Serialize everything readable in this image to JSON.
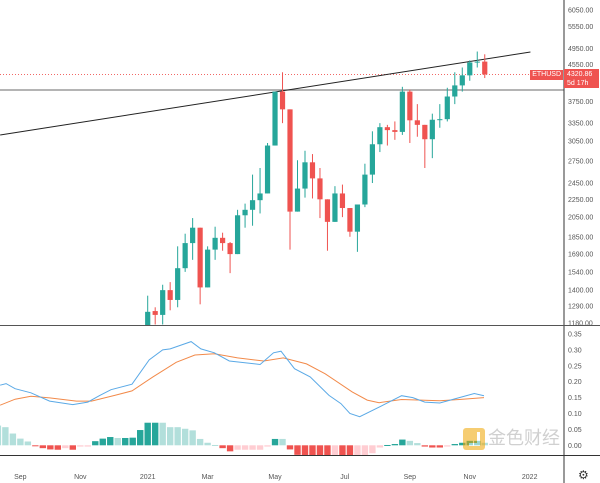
{
  "symbol": "ETHUSD",
  "last_price": "4320.86",
  "countdown": "5d 17h",
  "colors": {
    "up": "#26a69a",
    "down": "#ef5350",
    "hist_up_strong": "#26a69a",
    "hist_up_weak": "#b2dfdb",
    "hist_down_strong": "#ef5350",
    "hist_down_weak": "#ffcdd2",
    "line_fast": "#5aa9e6",
    "line_slow": "#f28a4a"
  },
  "price_axis": {
    "scale": "log",
    "ticks": [
      "6050.00",
      "5550.00",
      "4950.00",
      "4550.00",
      "3750.00",
      "3350.00",
      "3050.00",
      "2750.00",
      "2450.00",
      "2250.00",
      "2050.00",
      "1850.00",
      "1690.00",
      "1540.00",
      "1400.00",
      "1290.00",
      "1180.00"
    ]
  },
  "indicator_axis": {
    "ticks": [
      "0.35",
      "0.30",
      "0.25",
      "0.20",
      "0.15",
      "0.10",
      "0.05",
      "0.00"
    ]
  },
  "time_axis": [
    {
      "label": "Sep",
      "week": -17
    },
    {
      "label": "Nov",
      "week": -9
    },
    {
      "label": "2021",
      "week": 0
    },
    {
      "label": "Mar",
      "week": 8
    },
    {
      "label": "May",
      "week": 17
    },
    {
      "label": "Jul",
      "week": 26.3
    },
    {
      "label": "Sep",
      "week": 35
    },
    {
      "label": "Nov",
      "week": 43
    },
    {
      "label": "2022",
      "week": 51
    }
  ],
  "drawings": {
    "trendline": [
      {
        "week": -19.7,
        "price": 3149
      },
      {
        "week": 51.1,
        "price": 4858
      }
    ],
    "horizontal_level": 3983
  },
  "chart_data": {
    "type": "candlestick",
    "candles": [
      [
        1150,
        1360,
        1150,
        1250
      ],
      [
        1255,
        1280,
        1170,
        1230
      ],
      [
        1230,
        1440,
        1170,
        1400
      ],
      [
        1400,
        1460,
        1260,
        1330
      ],
      [
        1330,
        1760,
        1280,
        1570
      ],
      [
        1570,
        1880,
        1540,
        1790
      ],
      [
        1790,
        2040,
        1640,
        1940
      ],
      [
        1940,
        1940,
        1300,
        1420
      ],
      [
        1420,
        1760,
        1420,
        1730
      ],
      [
        1730,
        1950,
        1640,
        1840
      ],
      [
        1840,
        1890,
        1720,
        1790
      ],
      [
        1790,
        1800,
        1530,
        1690
      ],
      [
        1690,
        2130,
        1690,
        2070
      ],
      [
        2070,
        2200,
        1940,
        2130
      ],
      [
        2130,
        2560,
        1960,
        2240
      ],
      [
        2240,
        2650,
        2090,
        2320
      ],
      [
        2320,
        3020,
        2320,
        2980
      ],
      [
        2980,
        3950,
        2980,
        3950
      ],
      [
        3950,
        4370,
        3350,
        3600
      ],
      [
        3600,
        3600,
        1730,
        2110
      ],
      [
        2110,
        2760,
        2110,
        2380
      ],
      [
        2380,
        2900,
        2270,
        2730
      ],
      [
        2730,
        2850,
        2260,
        2510
      ],
      [
        2510,
        2650,
        2040,
        2250
      ],
      [
        2250,
        2250,
        1720,
        2000
      ],
      [
        2000,
        2410,
        2000,
        2320
      ],
      [
        2320,
        2430,
        2050,
        2150
      ],
      [
        2150,
        2150,
        1850,
        1900
      ],
      [
        1900,
        2190,
        1710,
        2190
      ],
      [
        2190,
        2710,
        2160,
        2560
      ],
      [
        2560,
        3210,
        2450,
        3000
      ],
      [
        3000,
        3350,
        2880,
        3280
      ],
      [
        3280,
        3320,
        2980,
        3230
      ],
      [
        3230,
        3380,
        3070,
        3200
      ],
      [
        3200,
        4050,
        3150,
        3950
      ],
      [
        3950,
        3990,
        3020,
        3400
      ],
      [
        3400,
        3700,
        3120,
        3320
      ],
      [
        3320,
        3320,
        2650,
        3080
      ],
      [
        3080,
        3520,
        2790,
        3410
      ],
      [
        3410,
        3700,
        3270,
        3420
      ],
      [
        3420,
        4030,
        3380,
        3850
      ],
      [
        3850,
        4370,
        3700,
        4080
      ],
      [
        4080,
        4480,
        3950,
        4300
      ],
      [
        4300,
        4650,
        4180,
        4600
      ],
      [
        4600,
        4870,
        4480,
        4620
      ],
      [
        4620,
        4800,
        4240,
        4320.86
      ]
    ],
    "histogram_start_week": -20,
    "histogram": [
      [
        0.062,
        "l"
      ],
      [
        0.057,
        "l"
      ],
      [
        0.037,
        "l"
      ],
      [
        0.021,
        "l"
      ],
      [
        0.012,
        "l"
      ],
      [
        -0.002,
        "r"
      ],
      [
        -0.009,
        "r"
      ],
      [
        -0.013,
        "r"
      ],
      [
        -0.014,
        "r"
      ],
      [
        -0.009,
        "p"
      ],
      [
        -0.014,
        "r"
      ],
      [
        -0.004,
        "p"
      ],
      [
        -0.004,
        "p"
      ],
      [
        0.013,
        "d"
      ],
      [
        0.021,
        "d"
      ],
      [
        0.026,
        "d"
      ],
      [
        0.023,
        "l"
      ],
      [
        0.023,
        "d"
      ],
      [
        0.024,
        "d"
      ],
      [
        0.048,
        "d"
      ],
      [
        0.071,
        "d"
      ],
      [
        0.071,
        "d"
      ],
      [
        0.071,
        "l"
      ],
      [
        0.057,
        "l"
      ],
      [
        0.057,
        "l"
      ],
      [
        0.052,
        "l"
      ],
      [
        0.047,
        "l"
      ],
      [
        0.02,
        "l"
      ],
      [
        0.008,
        "l"
      ],
      [
        0.001,
        "l"
      ],
      [
        -0.009,
        "r"
      ],
      [
        -0.019,
        "r"
      ],
      [
        -0.014,
        "p"
      ],
      [
        -0.014,
        "p"
      ],
      [
        -0.014,
        "p"
      ],
      [
        -0.014,
        "p"
      ],
      [
        -0.004,
        "p"
      ],
      [
        0.02,
        "d"
      ],
      [
        0.02,
        "l"
      ],
      [
        -0.013,
        "r"
      ],
      [
        -0.03,
        "r"
      ],
      [
        -0.035,
        "r"
      ],
      [
        -0.041,
        "r"
      ],
      [
        -0.049,
        "r"
      ],
      [
        -0.063,
        "r"
      ],
      [
        -0.063,
        "p"
      ],
      [
        -0.066,
        "r"
      ],
      [
        -0.07,
        "r"
      ],
      [
        -0.063,
        "p"
      ],
      [
        -0.051,
        "p"
      ],
      [
        -0.025,
        "p"
      ],
      [
        -0.007,
        "p"
      ],
      [
        0.001,
        "d"
      ],
      [
        0.004,
        "d"
      ],
      [
        0.018,
        "d"
      ],
      [
        0.014,
        "l"
      ],
      [
        0.007,
        "l"
      ],
      [
        -0.004,
        "r"
      ],
      [
        -0.007,
        "r"
      ],
      [
        -0.007,
        "r"
      ],
      [
        -0.004,
        "p"
      ],
      [
        0.004,
        "d"
      ],
      [
        0.008,
        "d"
      ],
      [
        0.014,
        "d"
      ],
      [
        0.014,
        "d"
      ],
      [
        0.008,
        "l"
      ]
    ],
    "line_fast": [
      [
        -19.7,
        0.189
      ],
      [
        -18.9,
        0.194
      ],
      [
        -17.7,
        0.178
      ],
      [
        -15.6,
        0.165
      ],
      [
        -13.1,
        0.139
      ],
      [
        -10,
        0.128
      ],
      [
        -8,
        0.136
      ],
      [
        -6.4,
        0.157
      ],
      [
        -4.9,
        0.175
      ],
      [
        -2.1,
        0.192
      ],
      [
        0.2,
        0.269
      ],
      [
        2,
        0.3
      ],
      [
        3,
        0.303
      ],
      [
        5.8,
        0.326
      ],
      [
        7.1,
        0.303
      ],
      [
        8.9,
        0.291
      ],
      [
        10.9,
        0.265
      ],
      [
        15,
        0.254
      ],
      [
        16.8,
        0.291
      ],
      [
        17.8,
        0.296
      ],
      [
        19.6,
        0.241
      ],
      [
        21.7,
        0.215
      ],
      [
        24.2,
        0.157
      ],
      [
        25.8,
        0.131
      ],
      [
        27,
        0.1
      ],
      [
        28.3,
        0.09
      ],
      [
        31.4,
        0.126
      ],
      [
        33.9,
        0.156
      ],
      [
        35.4,
        0.15
      ],
      [
        37,
        0.136
      ],
      [
        39,
        0.133
      ],
      [
        41.6,
        0.15
      ],
      [
        43.6,
        0.163
      ],
      [
        44.9,
        0.156
      ]
    ],
    "line_slow": [
      [
        -19.7,
        0.126
      ],
      [
        -17.7,
        0.145
      ],
      [
        -15.6,
        0.154
      ],
      [
        -13.1,
        0.149
      ],
      [
        -9.5,
        0.139
      ],
      [
        -7.5,
        0.139
      ],
      [
        -4.4,
        0.157
      ],
      [
        -2.1,
        0.171
      ],
      [
        0.7,
        0.215
      ],
      [
        3.8,
        0.261
      ],
      [
        6.3,
        0.284
      ],
      [
        8.9,
        0.288
      ],
      [
        12,
        0.275
      ],
      [
        15.5,
        0.265
      ],
      [
        18.1,
        0.275
      ],
      [
        21.2,
        0.256
      ],
      [
        23.7,
        0.225
      ],
      [
        27.3,
        0.168
      ],
      [
        29.3,
        0.142
      ],
      [
        30.9,
        0.134
      ],
      [
        33.9,
        0.144
      ],
      [
        36.5,
        0.142
      ],
      [
        39,
        0.14
      ],
      [
        41.6,
        0.144
      ],
      [
        44.9,
        0.15
      ]
    ]
  },
  "watermark": "金色财经"
}
